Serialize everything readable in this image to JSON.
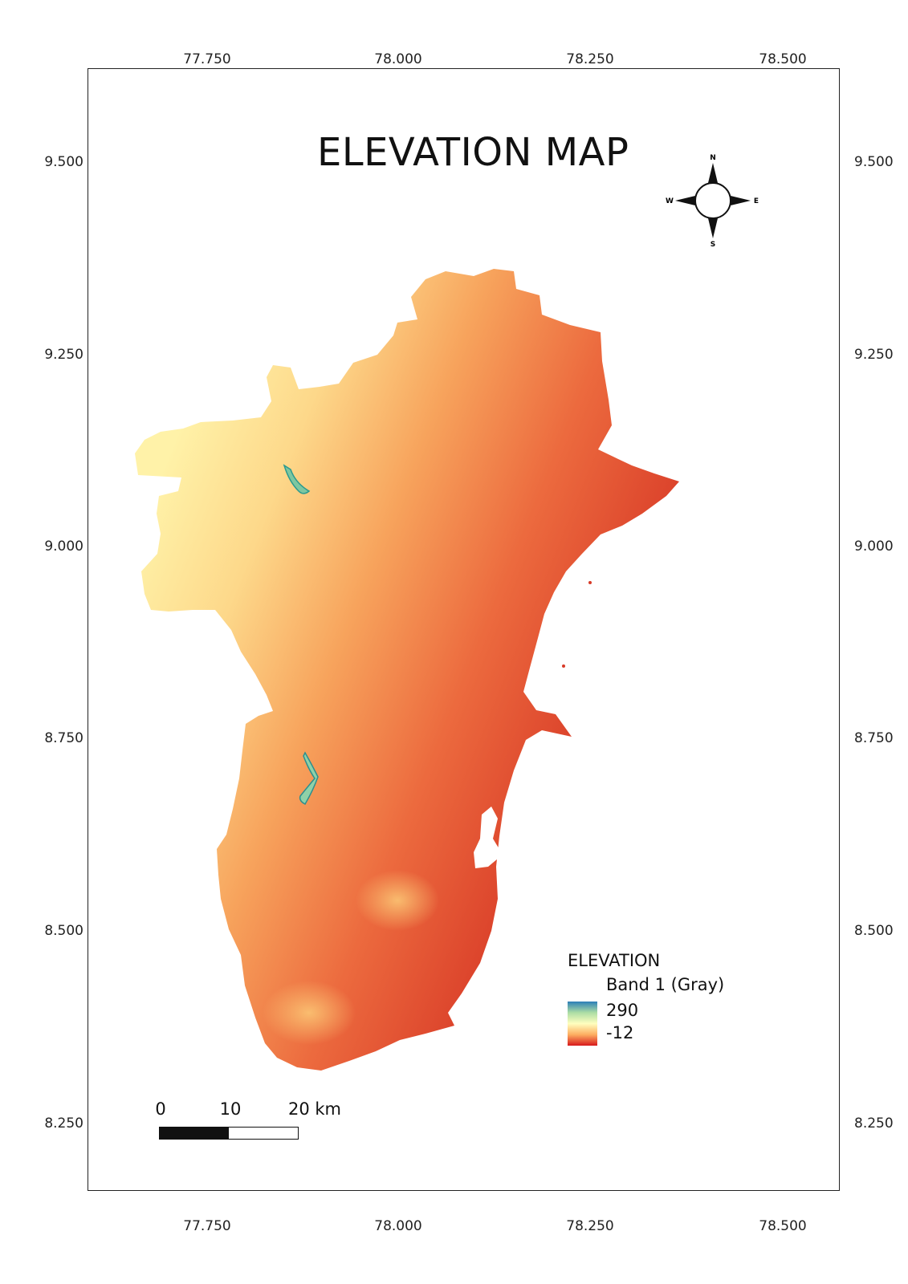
{
  "map": {
    "title": "ELEVATION MAP",
    "x_ticks": [
      "77.750",
      "78.000",
      "78.250",
      "78.500"
    ],
    "y_ticks": [
      "9.500",
      "9.250",
      "9.000",
      "8.750",
      "8.500",
      "8.250"
    ],
    "compass": {
      "n": "N",
      "s": "S",
      "e": "E",
      "w": "W"
    },
    "legend": {
      "title": "ELEVATION",
      "band": "Band 1 (Gray)",
      "max": "290",
      "min": "-12",
      "ramp_colors": [
        "#2c7fb8",
        "#abdda4",
        "#ffffbf",
        "#fdae61",
        "#d7191c"
      ]
    },
    "scale": {
      "labels": [
        "0",
        "10",
        "20 km"
      ]
    },
    "colors": {
      "low": "#d7191c",
      "mid": "#fdae61",
      "high_mid": "#ffffbf",
      "high": "#2c7fb8"
    }
  }
}
